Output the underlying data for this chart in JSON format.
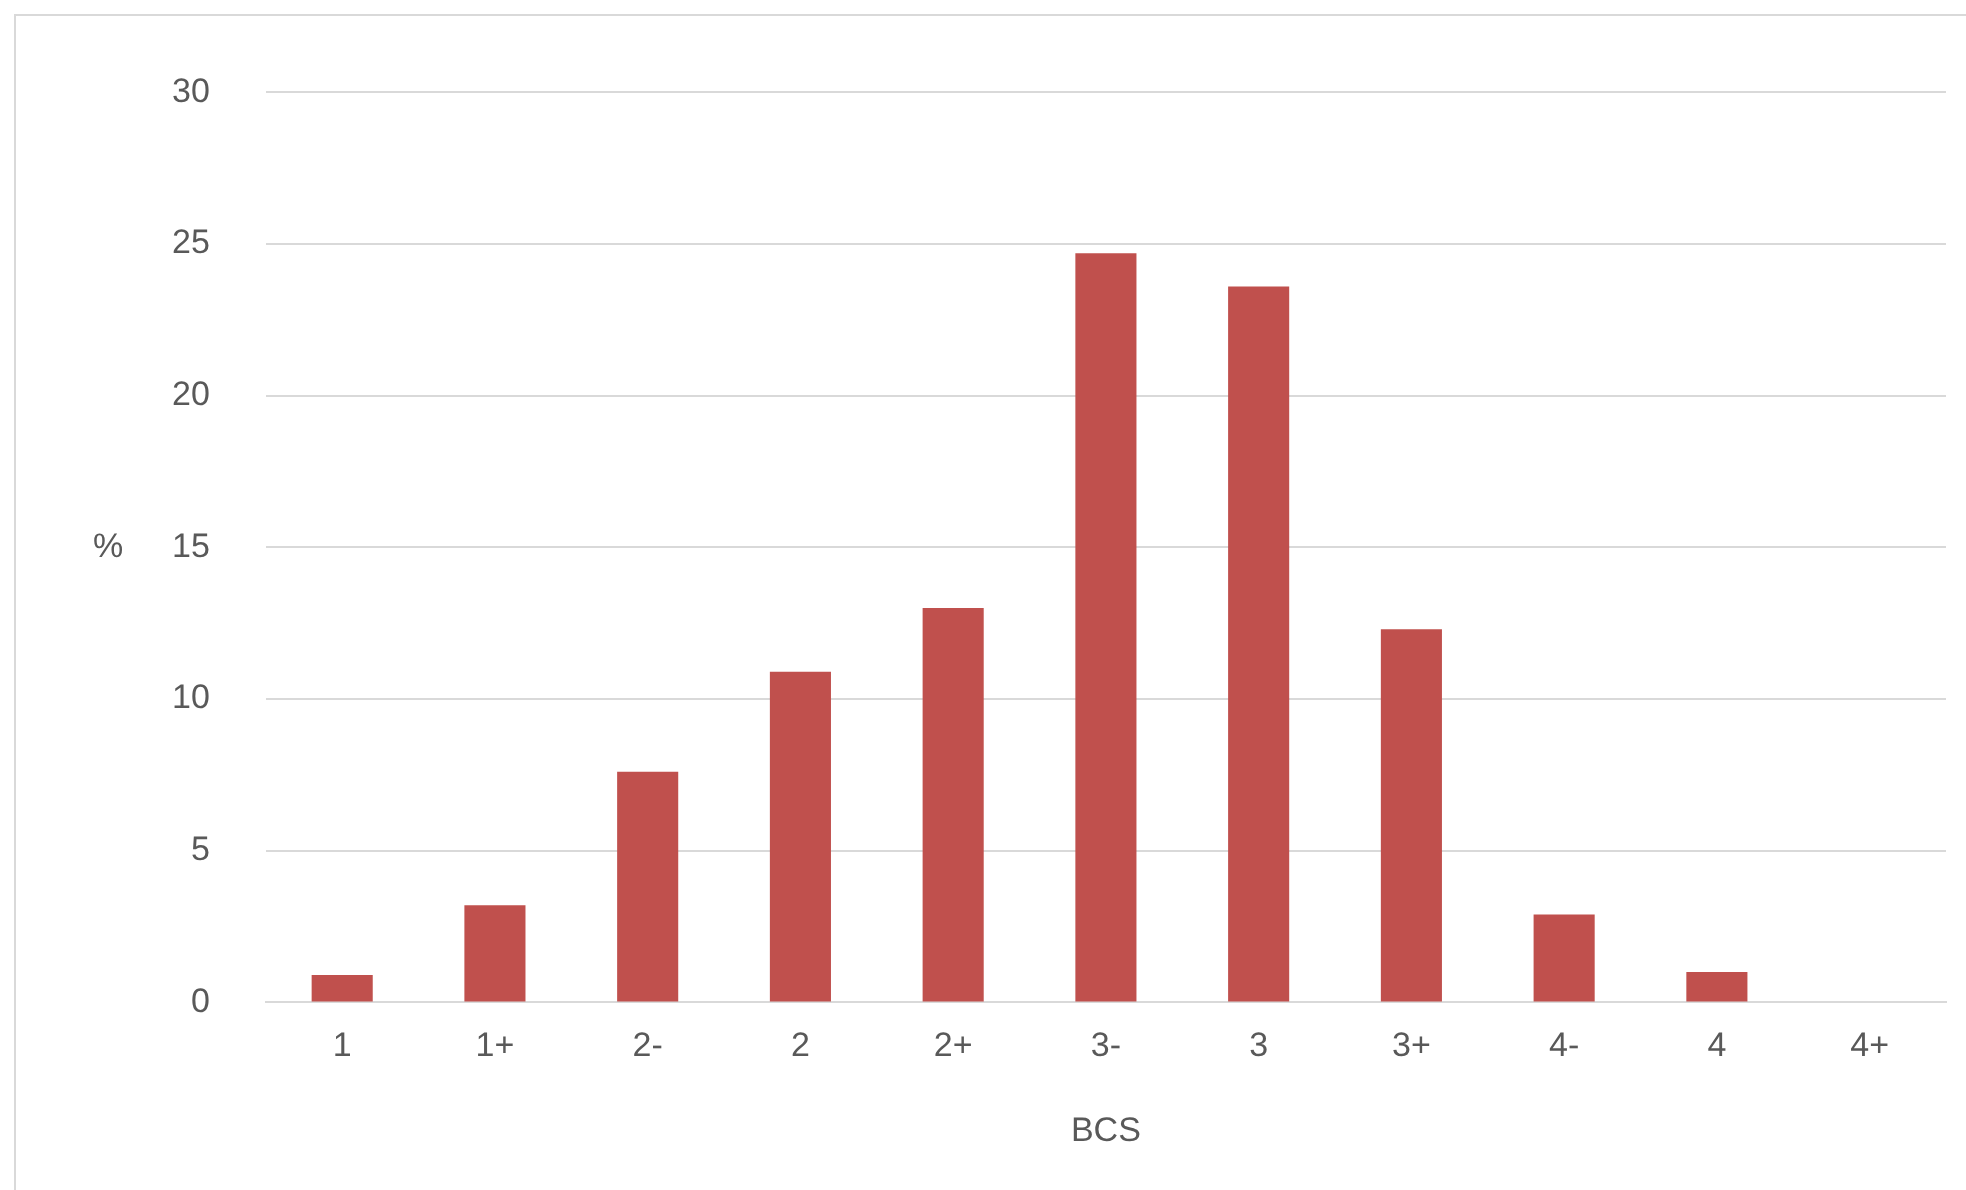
{
  "chart_data": {
    "type": "bar",
    "xlabel": "BCS",
    "ylabel": "%",
    "categories": [
      "1",
      "1+",
      "2-",
      "2",
      "2+",
      "3-",
      "3",
      "3+",
      "4-",
      "4",
      "4+"
    ],
    "values": [
      0.9,
      3.2,
      7.6,
      10.9,
      13.0,
      24.7,
      23.6,
      12.3,
      2.9,
      1.0,
      0
    ],
    "color": "#c0504d",
    "ylim": [
      0,
      30
    ],
    "yticks": [
      0,
      5,
      10,
      15,
      20,
      25,
      30
    ],
    "grid": "y",
    "legend": false
  }
}
